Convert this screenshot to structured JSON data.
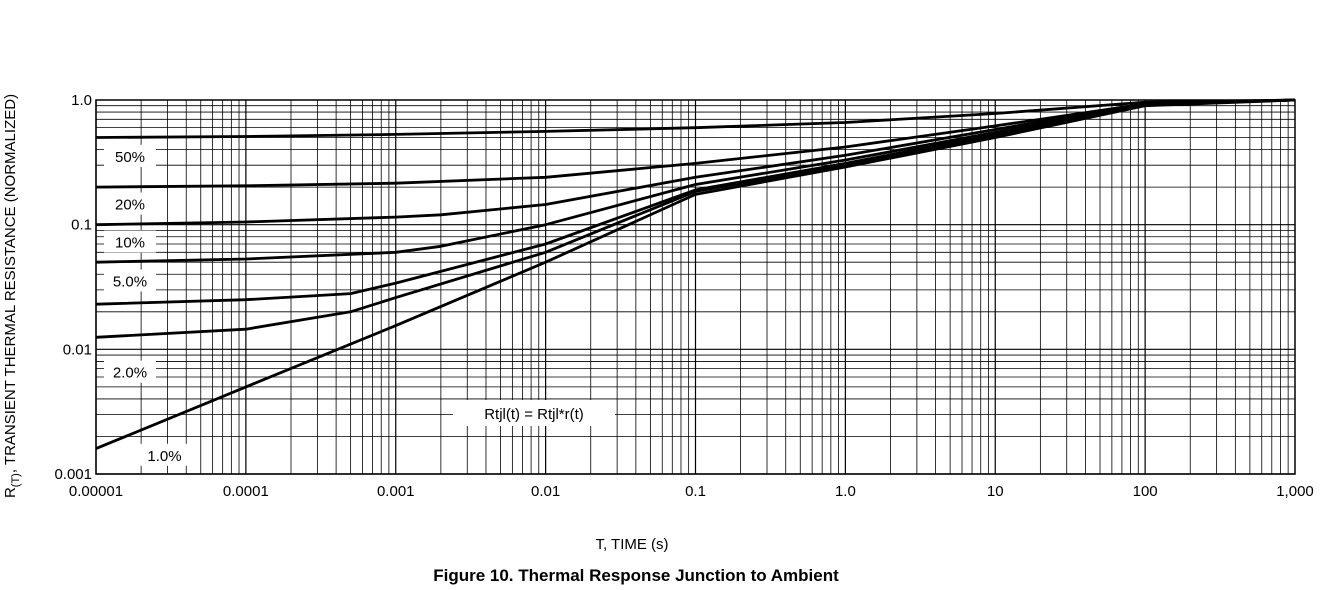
{
  "caption": "Figure 10. Thermal Response Junction to Ambient",
  "chart_data": {
    "type": "line",
    "title": "",
    "xlabel": "T, TIME (s)",
    "ylabel_prefix": "R",
    "ylabel_subscript": "(T)",
    "ylabel_rest": ", TRANSIENT THERMAL RESISTANCE (NORMALIZED)",
    "x_scale": "log",
    "y_scale": "log",
    "xlim": [
      1e-05,
      1000
    ],
    "ylim": [
      0.001,
      1.0
    ],
    "grid": true,
    "x_ticks": [
      {
        "value": 1e-05,
        "label": "0.00001"
      },
      {
        "value": 0.0001,
        "label": "0.0001"
      },
      {
        "value": 0.001,
        "label": "0.001"
      },
      {
        "value": 0.01,
        "label": "0.01"
      },
      {
        "value": 0.1,
        "label": "0.1"
      },
      {
        "value": 1,
        "label": "1.0"
      },
      {
        "value": 10,
        "label": "10"
      },
      {
        "value": 100,
        "label": "100"
      },
      {
        "value": 1000,
        "label": "1,000"
      }
    ],
    "y_ticks": [
      {
        "value": 1.0,
        "label": "1.0"
      },
      {
        "value": 0.1,
        "label": "0.1"
      },
      {
        "value": 0.01,
        "label": "0.01"
      },
      {
        "value": 0.001,
        "label": "0.001"
      }
    ],
    "annotation": "Rtjl(t) = Rtjl*r(t)",
    "series": [
      {
        "name": "50%",
        "label_at": [
          1e-05,
          0.35
        ],
        "x": [
          1e-05,
          0.0001,
          0.001,
          0.01,
          0.1,
          1,
          10,
          100,
          1000
        ],
        "y": [
          0.5,
          0.51,
          0.53,
          0.56,
          0.6,
          0.66,
          0.78,
          0.96,
          1.0
        ]
      },
      {
        "name": "20%",
        "label_at": [
          1e-05,
          0.145
        ],
        "x": [
          1e-05,
          0.0001,
          0.001,
          0.01,
          0.1,
          1,
          10,
          100,
          1000
        ],
        "y": [
          0.2,
          0.205,
          0.215,
          0.24,
          0.31,
          0.42,
          0.62,
          0.93,
          1.0
        ]
      },
      {
        "name": "10%",
        "label_at": [
          1e-05,
          0.072
        ],
        "x": [
          1e-05,
          0.0001,
          0.001,
          0.002,
          0.01,
          0.1,
          1,
          10,
          100,
          1000
        ],
        "y": [
          0.1,
          0.105,
          0.115,
          0.12,
          0.145,
          0.24,
          0.36,
          0.58,
          0.93,
          1.0
        ]
      },
      {
        "name": "5.0%",
        "label_at": [
          1e-05,
          0.035
        ],
        "x": [
          1e-05,
          0.0001,
          0.001,
          0.002,
          0.01,
          0.1,
          1,
          10,
          100,
          1000
        ],
        "y": [
          0.05,
          0.053,
          0.06,
          0.067,
          0.1,
          0.21,
          0.33,
          0.55,
          0.92,
          1.0
        ]
      },
      {
        "name": "2.0%",
        "label_at": [
          1e-05,
          0.0065
        ],
        "x": [
          1e-05,
          0.0001,
          0.0005,
          0.001,
          0.01,
          0.1,
          1,
          10,
          100,
          1000
        ],
        "y": [
          0.023,
          0.025,
          0.028,
          0.034,
          0.07,
          0.19,
          0.31,
          0.53,
          0.92,
          1.0
        ]
      },
      {
        "name": "1.0%",
        "label_at": [
          1.7e-05,
          0.0014
        ],
        "x": [
          1e-05,
          0.0001,
          0.0005,
          0.001,
          0.01,
          0.1,
          1,
          10,
          100,
          1000
        ],
        "y": [
          0.0125,
          0.0145,
          0.02,
          0.026,
          0.06,
          0.185,
          0.3,
          0.52,
          0.92,
          1.0
        ]
      },
      {
        "name": "",
        "x": [
          1e-05,
          0.0001,
          0.001,
          0.01,
          0.1,
          1,
          10,
          100,
          1000
        ],
        "y": [
          0.0016,
          0.005,
          0.0155,
          0.05,
          0.175,
          0.29,
          0.5,
          0.9,
          1.0
        ]
      }
    ]
  }
}
